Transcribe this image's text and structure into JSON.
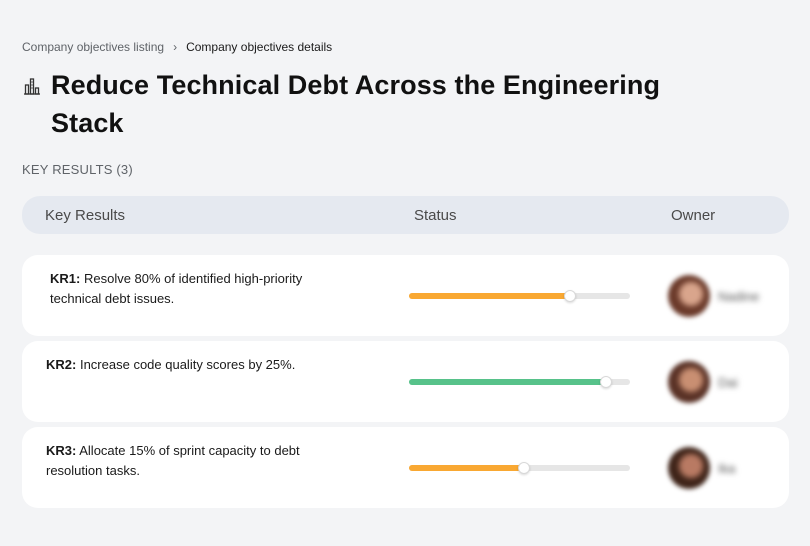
{
  "breadcrumb": {
    "parent": "Company objectives listing",
    "separator": "›",
    "current": "Company objectives details"
  },
  "objective": {
    "icon": "building-chart-icon",
    "title": "Reduce Technical Debt Across the Engineering Stack"
  },
  "key_results_section": {
    "label": "KEY RESULTS (3)"
  },
  "table": {
    "headers": {
      "key_results": "Key Results",
      "status": "Status",
      "owner": "Owner"
    },
    "rows": [
      {
        "code": "KR1:",
        "text": "Resolve 80% of identified high-priority technical debt issues.",
        "progress": 0.73,
        "color": "#f9a832",
        "owner": "Nadine",
        "avatar_colors": [
          "#6b3a2a",
          "#d9a58c"
        ]
      },
      {
        "code": "KR2:",
        "text": "Increase code quality scores by 25%.",
        "progress": 0.89,
        "color": "#57c28a",
        "owner": "Dai",
        "avatar_colors": [
          "#5a3226",
          "#c98f72"
        ]
      },
      {
        "code": "KR3:",
        "text": "Allocate 15% of sprint capacity to debt resolution tasks.",
        "progress": 0.52,
        "color": "#f9a832",
        "owner": "Ika",
        "avatar_colors": [
          "#3f2419",
          "#b97a63"
        ]
      }
    ]
  }
}
